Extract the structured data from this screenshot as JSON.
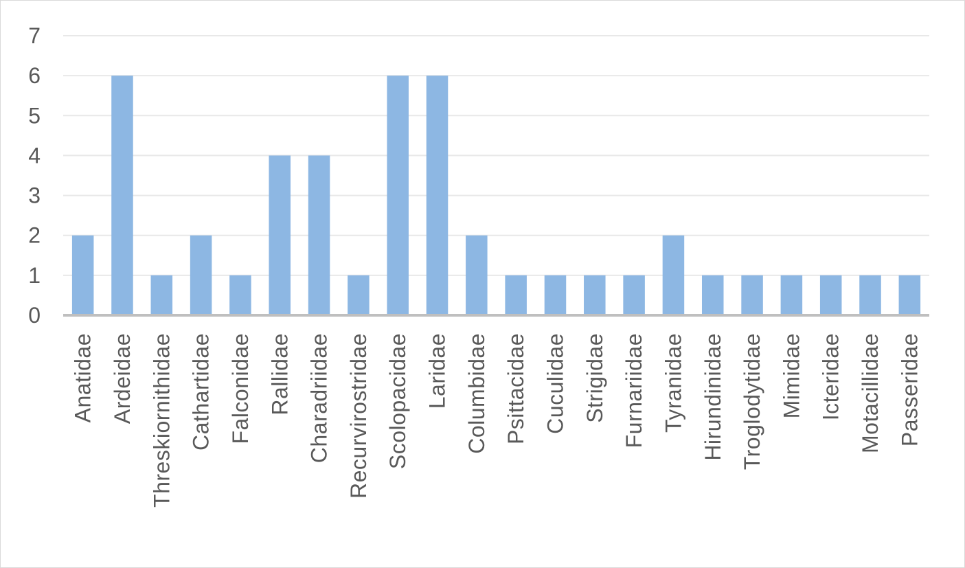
{
  "chart_data": {
    "type": "bar",
    "title": "",
    "xlabel": "",
    "ylabel": "",
    "ylim": [
      0,
      7
    ],
    "yticks": [
      "0",
      "1",
      "2",
      "3",
      "4",
      "5",
      "6",
      "7"
    ],
    "grid": true,
    "legend": "none",
    "categories": [
      "Anatidae",
      "Ardeidae",
      "Threskiornithidae",
      "Cathartidae",
      "Falconidae",
      "Rallidae",
      "Charadriidae",
      "Recurvirostridae",
      "Scolopacidae",
      "Laridae",
      "Columbidae",
      "Psittacidae",
      "Cuculidae",
      "Strigidae",
      "Furnariidae",
      "Tyranidae",
      "Hirundinidae",
      "Troglodytidae",
      "Mimidae",
      "Icteridae",
      "Motacillidae",
      "Passeridae"
    ],
    "values": [
      2,
      6,
      1,
      2,
      1,
      4,
      4,
      1,
      6,
      6,
      2,
      1,
      1,
      1,
      1,
      2,
      1,
      1,
      1,
      1,
      1,
      1
    ],
    "colors": {
      "bar": "#8db7e3",
      "gridline": "#e8e8e8",
      "axis": "#bfbfbf",
      "text": "#595959"
    }
  }
}
